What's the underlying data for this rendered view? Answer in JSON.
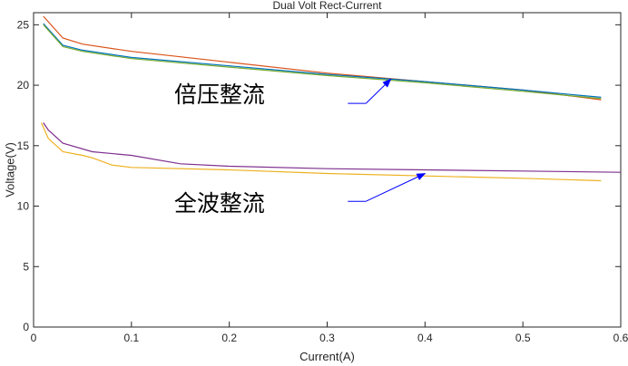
{
  "chart_data": {
    "type": "line",
    "title": "Dual Volt Rect-Current",
    "xlabel": "Current(A)",
    "ylabel": "Voltage(V)",
    "xlim": [
      0,
      0.6
    ],
    "ylim": [
      0,
      26
    ],
    "xticks": [
      0,
      0.1,
      0.2,
      0.3,
      0.4,
      0.5,
      0.6
    ],
    "xtick_labels": [
      "0",
      "0.1",
      "0.2",
      "0.3",
      "0.4",
      "0.5",
      "0.6"
    ],
    "yticks": [
      0,
      5,
      10,
      15,
      20,
      25
    ],
    "ytick_labels": [
      "0",
      "5",
      "10",
      "15",
      "20",
      "25"
    ],
    "grid": false,
    "legend": "none",
    "series": [
      {
        "color": "#d95319",
        "x": [
          0.01,
          0.03,
          0.05,
          0.1,
          0.2,
          0.3,
          0.4,
          0.5,
          0.58
        ],
        "y": [
          25.7,
          23.9,
          23.4,
          22.8,
          21.9,
          21.0,
          20.3,
          19.6,
          18.8
        ]
      },
      {
        "color": "#0072bd",
        "x": [
          0.01,
          0.03,
          0.05,
          0.1,
          0.2,
          0.3,
          0.4,
          0.5,
          0.58
        ],
        "y": [
          25.1,
          23.3,
          22.9,
          22.3,
          21.6,
          20.9,
          20.3,
          19.6,
          19.0
        ]
      },
      {
        "color": "#77ac30",
        "x": [
          0.01,
          0.03,
          0.05,
          0.1,
          0.2,
          0.3,
          0.4,
          0.5,
          0.58
        ],
        "y": [
          25.0,
          23.2,
          22.8,
          22.2,
          21.5,
          20.8,
          20.2,
          19.5,
          18.9
        ]
      },
      {
        "color": "#7e2f8e",
        "x": [
          0.01,
          0.015,
          0.03,
          0.06,
          0.1,
          0.15,
          0.2,
          0.3,
          0.4,
          0.5,
          0.6
        ],
        "y": [
          16.9,
          16.3,
          15.2,
          14.5,
          14.2,
          13.5,
          13.3,
          13.1,
          13.0,
          12.9,
          12.8
        ]
      },
      {
        "color": "#edb120",
        "x": [
          0.008,
          0.015,
          0.03,
          0.05,
          0.06,
          0.08,
          0.1,
          0.2,
          0.3,
          0.4,
          0.5,
          0.58
        ],
        "y": [
          16.9,
          15.6,
          14.5,
          14.2,
          14.0,
          13.4,
          13.2,
          13.0,
          12.7,
          12.5,
          12.3,
          12.1
        ]
      }
    ],
    "annotations": [
      {
        "text": "倍压整流",
        "text_at": [
          0.19,
          18.6
        ],
        "arrow_from": [
          0.31,
          18.5
        ],
        "arrow_to": [
          0.365,
          20.5
        ]
      },
      {
        "text": "全波整流",
        "text_at": [
          0.19,
          9.6
        ],
        "arrow_from": [
          0.31,
          10.4
        ],
        "arrow_to": [
          0.4,
          12.7
        ]
      }
    ]
  }
}
